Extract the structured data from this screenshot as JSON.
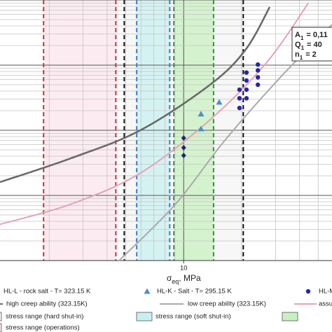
{
  "chart_data": {
    "type": "scatter",
    "xscale": "log",
    "yscale": "log",
    "xlim": [
      1.11,
      59
    ],
    "ylim": [
      1e-10,
      1e-06
    ],
    "xticks": [
      10
    ],
    "grid": true,
    "x_label": {
      "symbol": "σ",
      "sub": "eq",
      "unit": ", MPa"
    },
    "annotation": [
      {
        "symbol": "A",
        "sub": "1",
        "text": "= 0,11"
      },
      {
        "symbol": "Q",
        "sub": "1",
        "text": "= 40"
      },
      {
        "symbol": "n",
        "sub": "1",
        "text": "= 2"
      }
    ],
    "bands": [
      {
        "name": "stress range (hard shut-in)",
        "color": "#f4f4f4",
        "edge_color": "#111111",
        "range": [
          4.91,
          20.4
        ]
      },
      {
        "name": "stress range (soft shut-in)",
        "color": "#c9f0f0",
        "edge_color": "#3a7fc8",
        "range": [
          5.7,
          8.46
        ]
      },
      {
        "color": "#c8f0c0",
        "edge_color": "#2a9a3a",
        "range": [
          8.89,
          14.3
        ]
      },
      {
        "name": "stress range (operations)",
        "color": "#fbe6ee",
        "edge_color": "#d03030",
        "range": [
          1.87,
          4.44
        ]
      }
    ],
    "lines": [
      {
        "name": "high creep ability (323.15K)",
        "color": "#6a6a6a",
        "x": [
          1.11,
          2.58,
          5.95,
          13.7,
          20.9,
          28.0
        ],
        "values": [
          1.6e-09,
          3.7e-09,
          1e-08,
          5e-08,
          1.7e-07,
          7.8e-07
        ]
      },
      {
        "name": "low creep ability (323.15K)",
        "color": "#aaaaaa",
        "x": [
          4.62,
          9.05,
          16.3,
          31.8,
          59
        ],
        "values": [
          1e-10,
          7.3e-10,
          6.9e-09,
          6.5e-08,
          4.2e-07
        ]
      },
      {
        "name": "assumed/fitt",
        "color": "#e6a2b4",
        "x": [
          1.11,
          2.58,
          5.95,
          13.7,
          26.8,
          44.4
        ],
        "values": [
          3.6e-10,
          7.3e-10,
          2.2e-09,
          1.45e-08,
          1.07e-07,
          8.9e-07
        ]
      }
    ],
    "series": [
      {
        "name": "HL-L - rock salt - T= 323.15 K",
        "color": "#1a2a6a",
        "marker": "diamond",
        "x": [
          10,
          10,
          10
        ],
        "values": [
          7.6e-09,
          5.4e-09,
          4.1e-09
        ]
      },
      {
        "name": "HL-K - Salt - T= 295.15 K",
        "color": "#4a8fcf",
        "marker": "triangle",
        "x": [
          12.3,
          12.3,
          15.3
        ],
        "values": [
          1.78e-08,
          1.05e-08,
          2.7e-08
        ]
      },
      {
        "name": "HL-M - Salt -",
        "color": "#2626a8",
        "marker": "circle",
        "x": [
          19.5,
          19.5,
          19.5,
          21.2,
          21.2,
          21.2,
          21.2,
          24.3,
          24.3,
          24.3,
          24.3
        ],
        "values": [
          2.2e-08,
          3.1e-08,
          4.2e-08,
          3.1e-08,
          4.2e-08,
          5.8e-08,
          7.7e-08,
          5e-08,
          6.5e-08,
          8.3e-08,
          1.02e-07
        ]
      }
    ]
  }
}
